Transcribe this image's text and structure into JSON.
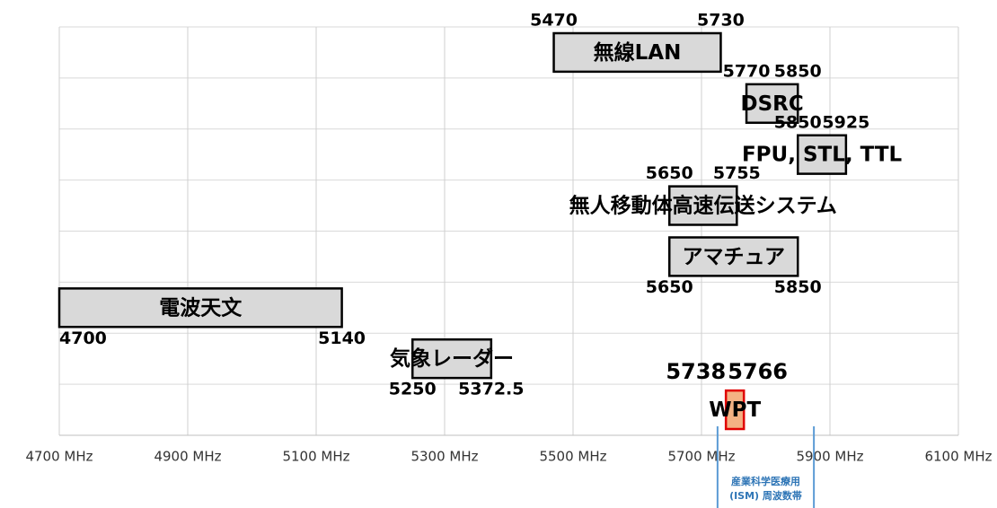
{
  "chart_data": {
    "type": "range-bar",
    "bands": [
      {
        "name": "無線LAN",
        "start": 5470,
        "end": 5730
      },
      {
        "name": "DSRC",
        "start": 5770,
        "end": 5850
      },
      {
        "name": "FPU, STL, TTL",
        "start": 5850,
        "end": 5925
      },
      {
        "name": "無人移動体高速伝送システム",
        "start": 5650,
        "end": 5755
      },
      {
        "name": "アマチュア",
        "start": 5650,
        "end": 5850
      },
      {
        "name": "電波天文",
        "start": 4700,
        "end": 5140
      },
      {
        "name": "気象レーダー",
        "start": 5250,
        "end": 5372.5
      },
      {
        "name": "WPT",
        "start": 5738,
        "end": 5766,
        "color": "#f4b183",
        "edge": "#e00000"
      }
    ],
    "color": "#d9d9d9",
    "edge": "#000000",
    "xlim": [
      4700,
      6100
    ],
    "xticks": [
      {
        "value": 4700,
        "label": "4700 MHz"
      },
      {
        "value": 4900,
        "label": "4900 MHz"
      },
      {
        "value": 5100,
        "label": "5100 MHz"
      },
      {
        "value": 5300,
        "label": "5300 MHz"
      },
      {
        "value": 5500,
        "label": "5500 MHz"
      },
      {
        "value": 5700,
        "label": "5700 MHz"
      },
      {
        "value": 5900,
        "label": "5900 MHz"
      },
      {
        "value": 6100,
        "label": "6100 MHz"
      }
    ],
    "grid": true,
    "ism_band": {
      "range": [
        5725,
        5875
      ],
      "label": [
        "産業科学医療用",
        "(ISM) 周波数帯"
      ],
      "color": "#5b9bd5"
    }
  }
}
